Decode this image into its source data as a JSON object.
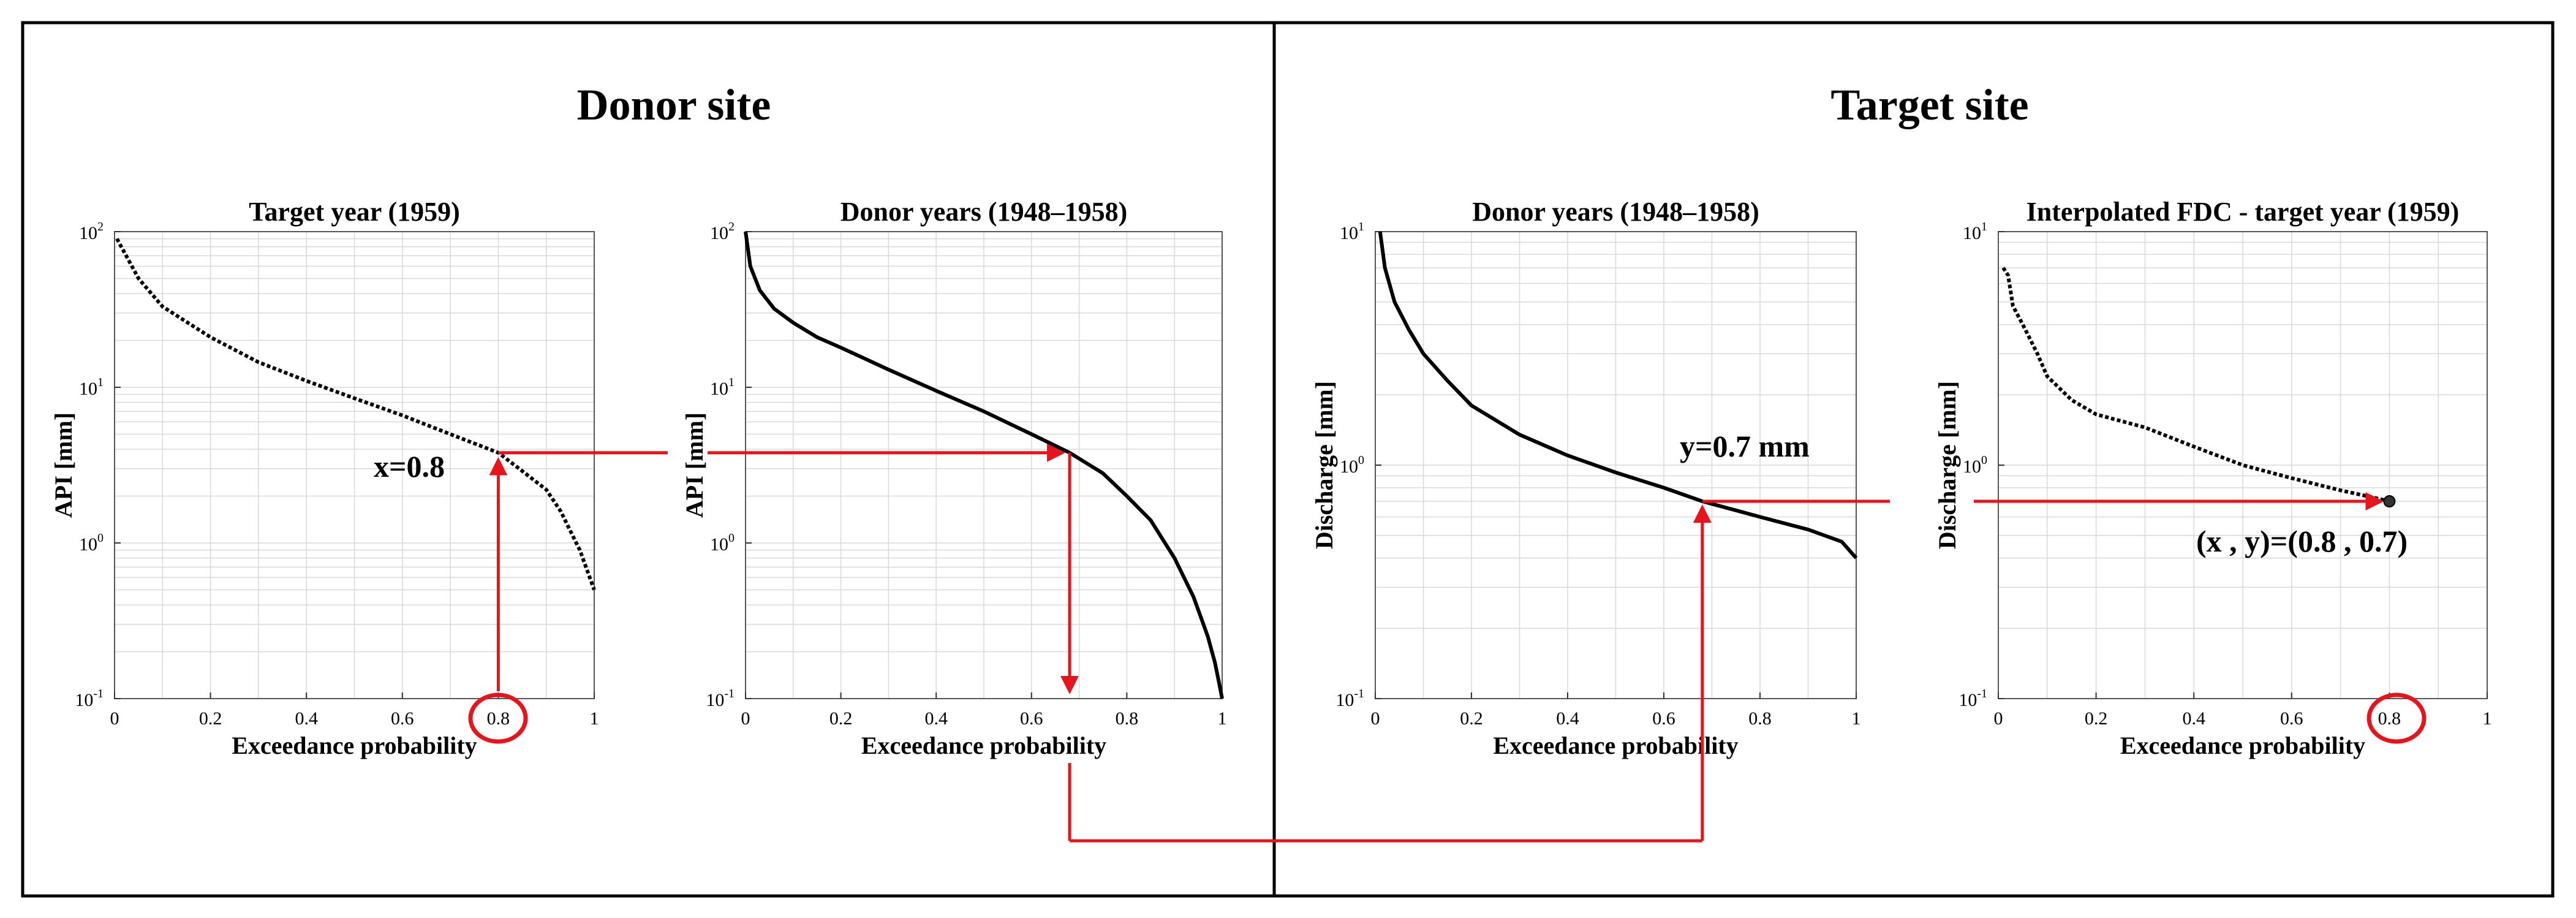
{
  "site_titles": {
    "donor": "Donor site",
    "target": "Target site"
  },
  "colors": {
    "arrow": "#e8141b",
    "curve": "#000000",
    "grid": "#d9d9d9",
    "frame": "#000000"
  },
  "annotations": {
    "x_value": "x=0.8",
    "y_value": "y=0.7 mm",
    "point": "(x , y)=(0.8 , 0.7)",
    "circled_tick": "0.8"
  },
  "chart_data": [
    {
      "type": "line",
      "title": "Target year (1959)",
      "xlabel": "Exceedance probability",
      "ylabel": "API [mm]",
      "xlim": [
        0,
        1
      ],
      "ylim": [
        0.1,
        100
      ],
      "yscale": "log",
      "xticks": [
        "0",
        "0.2",
        "0.4",
        "0.6",
        "0.8",
        "1"
      ],
      "yticks": [
        {
          "base": "10",
          "exp": "2",
          "v": 100
        },
        {
          "base": "10",
          "exp": "1",
          "v": 10
        },
        {
          "base": "10",
          "exp": "0",
          "v": 1
        },
        {
          "base": "10",
          "exp": "-1",
          "v": 0.1
        }
      ],
      "grid": true,
      "marker": "dots",
      "x": [
        0.005,
        0.05,
        0.1,
        0.2,
        0.3,
        0.4,
        0.5,
        0.6,
        0.7,
        0.8,
        0.85,
        0.9,
        0.93,
        0.95,
        0.97,
        1.0
      ],
      "y": [
        90,
        50,
        33,
        21,
        14.5,
        11,
        8.5,
        6.6,
        5.0,
        3.8,
        2.9,
        2.2,
        1.6,
        1.2,
        0.9,
        0.5
      ]
    },
    {
      "type": "line",
      "title": "Donor years (1948–1958)",
      "xlabel": "Exceedance probability",
      "ylabel": "API [mm]",
      "xlim": [
        0,
        1
      ],
      "ylim": [
        0.1,
        100
      ],
      "yscale": "log",
      "xticks": [
        "0",
        "0.2",
        "0.4",
        "0.6",
        "0.8",
        "1"
      ],
      "yticks": [
        {
          "base": "10",
          "exp": "2",
          "v": 100
        },
        {
          "base": "10",
          "exp": "1",
          "v": 10
        },
        {
          "base": "10",
          "exp": "0",
          "v": 1
        },
        {
          "base": "10",
          "exp": "-1",
          "v": 0.1
        }
      ],
      "grid": true,
      "marker": "line",
      "x": [
        0.0,
        0.01,
        0.03,
        0.06,
        0.1,
        0.15,
        0.2,
        0.3,
        0.4,
        0.5,
        0.6,
        0.68,
        0.75,
        0.8,
        0.85,
        0.9,
        0.94,
        0.97,
        0.985,
        0.995,
        1.0
      ],
      "y": [
        100,
        60,
        42,
        32,
        26,
        21,
        18,
        13,
        9.5,
        7,
        5,
        3.8,
        2.8,
        2.0,
        1.4,
        0.8,
        0.45,
        0.25,
        0.17,
        0.12,
        0.1
      ]
    },
    {
      "type": "line",
      "title": "Donor years (1948–1958)",
      "xlabel": "Exceedance probability",
      "ylabel": "Discharge [mm]",
      "xlim": [
        0,
        1
      ],
      "ylim": [
        0.1,
        10
      ],
      "yscale": "log",
      "xticks": [
        "0",
        "0.2",
        "0.4",
        "0.6",
        "0.8",
        "1"
      ],
      "yticks": [
        {
          "base": "10",
          "exp": "1",
          "v": 10
        },
        {
          "base": "10",
          "exp": "0",
          "v": 1
        },
        {
          "base": "10",
          "exp": "-1",
          "v": 0.1
        }
      ],
      "grid": true,
      "marker": "line",
      "x": [
        0.01,
        0.02,
        0.04,
        0.07,
        0.1,
        0.15,
        0.2,
        0.3,
        0.4,
        0.5,
        0.6,
        0.68,
        0.75,
        0.8,
        0.9,
        0.97,
        1.0
      ],
      "y": [
        10,
        7,
        5,
        3.8,
        3.0,
        2.3,
        1.8,
        1.35,
        1.1,
        0.93,
        0.8,
        0.7,
        0.64,
        0.6,
        0.53,
        0.47,
        0.4
      ]
    },
    {
      "type": "line",
      "title": "Interpolated FDC - target year (1959)",
      "xlabel": "Exceedance probability",
      "ylabel": "Discharge [mm]",
      "xlim": [
        0,
        1
      ],
      "ylim": [
        0.1,
        10
      ],
      "yscale": "log",
      "xticks": [
        "0",
        "0.2",
        "0.4",
        "0.6",
        "0.8",
        "1"
      ],
      "yticks": [
        {
          "base": "10",
          "exp": "1",
          "v": 10
        },
        {
          "base": "10",
          "exp": "0",
          "v": 1
        },
        {
          "base": "10",
          "exp": "-1",
          "v": 0.1
        }
      ],
      "grid": true,
      "marker": "dots",
      "x": [
        0.01,
        0.02,
        0.03,
        0.05,
        0.08,
        0.1,
        0.15,
        0.2,
        0.3,
        0.4,
        0.5,
        0.6,
        0.7,
        0.75,
        0.8
      ],
      "y": [
        7,
        6.5,
        4.8,
        4.0,
        3.0,
        2.4,
        1.9,
        1.65,
        1.45,
        1.2,
        1.0,
        0.88,
        0.78,
        0.74,
        0.7
      ],
      "highlight_point": {
        "x": 0.8,
        "y": 0.7
      }
    }
  ]
}
